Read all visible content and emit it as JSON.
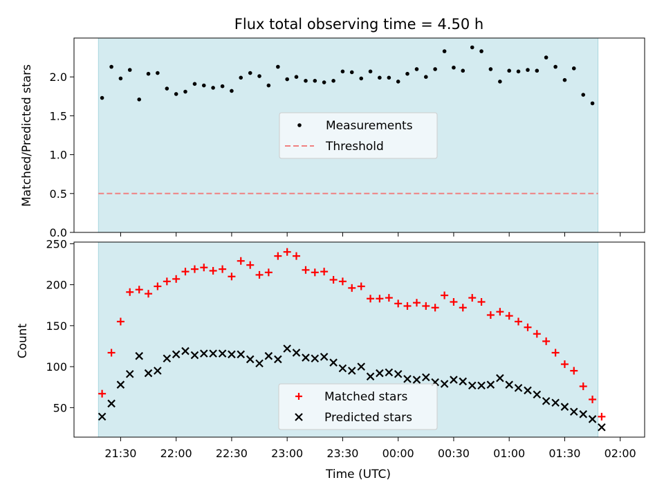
{
  "title": "Flux total observing time = 4.50 h",
  "colors": {
    "band": "#d4ebf0",
    "band_edge": "#a9d6df",
    "measurement": "#000000",
    "threshold": "#f08080",
    "matched": "#ff0000",
    "predicted": "#000000"
  },
  "chart_data": [
    {
      "type": "scatter",
      "ylabel": "Matched/Predicted stars",
      "xlim": [
        -0.42,
        4.72
      ],
      "ylim": [
        0,
        2.5
      ],
      "yticks": [
        {
          "v": 0.0,
          "label": "0.0"
        },
        {
          "v": 0.5,
          "label": "0.5"
        },
        {
          "v": 1.0,
          "label": "1.0"
        },
        {
          "v": 1.5,
          "label": "1.5"
        },
        {
          "v": 2.0,
          "label": "2.0"
        }
      ],
      "observing_window": [
        -0.2,
        4.3
      ],
      "legend": {
        "position": "center",
        "entries": [
          {
            "label": "Measurements",
            "marker": "dot"
          },
          {
            "label": "Threshold",
            "marker": "dashed-line"
          }
        ]
      },
      "threshold": {
        "name": "Threshold",
        "value": 0.5
      },
      "series": [
        {
          "name": "Measurements",
          "x": [
            -0.167,
            -0.083,
            0,
            0.083,
            0.167,
            0.25,
            0.333,
            0.417,
            0.5,
            0.583,
            0.667,
            0.75,
            0.833,
            0.917,
            1.0,
            1.083,
            1.167,
            1.25,
            1.333,
            1.417,
            1.5,
            1.583,
            1.667,
            1.75,
            1.833,
            1.917,
            2.0,
            2.083,
            2.167,
            2.25,
            2.333,
            2.417,
            2.5,
            2.583,
            2.667,
            2.75,
            2.833,
            2.917,
            3.0,
            3.083,
            3.167,
            3.25,
            3.333,
            3.417,
            3.5,
            3.583,
            3.667,
            3.75,
            3.833,
            3.917,
            4.0,
            4.083,
            4.167,
            4.25
          ],
          "y": [
            1.73,
            2.13,
            1.98,
            2.09,
            1.71,
            2.04,
            2.05,
            1.85,
            1.78,
            1.81,
            1.91,
            1.89,
            1.86,
            1.88,
            1.82,
            1.99,
            2.05,
            2.01,
            1.89,
            2.13,
            1.97,
            2.0,
            1.95,
            1.95,
            1.93,
            1.95,
            2.07,
            2.06,
            1.98,
            2.07,
            1.99,
            1.99,
            1.94,
            2.04,
            2.1,
            2.0,
            2.1,
            2.33,
            2.12,
            2.08,
            2.38,
            2.33,
            2.1,
            1.94,
            2.08,
            2.07,
            2.09,
            2.08,
            2.25,
            2.13,
            1.96,
            2.11,
            1.77,
            1.66
          ]
        }
      ]
    },
    {
      "type": "scatter",
      "xlabel": "Time (UTC)",
      "ylabel": "Count",
      "xlim": [
        -0.42,
        4.72
      ],
      "ylim": [
        14,
        252
      ],
      "yticks": [
        {
          "v": 50,
          "label": "50"
        },
        {
          "v": 100,
          "label": "100"
        },
        {
          "v": 150,
          "label": "150"
        },
        {
          "v": 200,
          "label": "200"
        },
        {
          "v": 250,
          "label": "250"
        }
      ],
      "xticks": [
        {
          "v": 0,
          "label": "21:30"
        },
        {
          "v": 0.5,
          "label": "22:00"
        },
        {
          "v": 1.0,
          "label": "22:30"
        },
        {
          "v": 1.5,
          "label": "23:00"
        },
        {
          "v": 2.0,
          "label": "23:30"
        },
        {
          "v": 2.5,
          "label": "00:00"
        },
        {
          "v": 3.0,
          "label": "00:30"
        },
        {
          "v": 3.5,
          "label": "01:00"
        },
        {
          "v": 4.0,
          "label": "01:30"
        },
        {
          "v": 4.5,
          "label": "02:00"
        }
      ],
      "observing_window": [
        -0.2,
        4.3
      ],
      "legend": {
        "position": "lower center",
        "entries": [
          {
            "label": "Matched stars",
            "marker": "plus"
          },
          {
            "label": "Predicted stars",
            "marker": "cross"
          }
        ]
      },
      "series": [
        {
          "name": "Matched stars",
          "x": [
            -0.167,
            -0.083,
            0,
            0.083,
            0.167,
            0.25,
            0.333,
            0.417,
            0.5,
            0.583,
            0.667,
            0.75,
            0.833,
            0.917,
            1.0,
            1.083,
            1.167,
            1.25,
            1.333,
            1.417,
            1.5,
            1.583,
            1.667,
            1.75,
            1.833,
            1.917,
            2.0,
            2.083,
            2.167,
            2.25,
            2.333,
            2.417,
            2.5,
            2.583,
            2.667,
            2.75,
            2.833,
            2.917,
            3.0,
            3.083,
            3.167,
            3.25,
            3.333,
            3.417,
            3.5,
            3.583,
            3.667,
            3.75,
            3.833,
            3.917,
            4.0,
            4.083,
            4.167,
            4.25,
            4.333
          ],
          "y": [
            67,
            117,
            155,
            191,
            194,
            189,
            198,
            204,
            207,
            216,
            219,
            221,
            217,
            219,
            210,
            229,
            224,
            212,
            215,
            235,
            240,
            235,
            218,
            215,
            216,
            206,
            204,
            196,
            198,
            183,
            183,
            184,
            177,
            174,
            178,
            174,
            172,
            187,
            179,
            172,
            184,
            179,
            163,
            167,
            162,
            155,
            148,
            140,
            131,
            117,
            103,
            95,
            76,
            60,
            39
          ]
        },
        {
          "name": "Predicted stars",
          "x": [
            -0.167,
            -0.083,
            0,
            0.083,
            0.167,
            0.25,
            0.333,
            0.417,
            0.5,
            0.583,
            0.667,
            0.75,
            0.833,
            0.917,
            1.0,
            1.083,
            1.167,
            1.25,
            1.333,
            1.417,
            1.5,
            1.583,
            1.667,
            1.75,
            1.833,
            1.917,
            2.0,
            2.083,
            2.167,
            2.25,
            2.333,
            2.417,
            2.5,
            2.583,
            2.667,
            2.75,
            2.833,
            2.917,
            3.0,
            3.083,
            3.167,
            3.25,
            3.333,
            3.417,
            3.5,
            3.583,
            3.667,
            3.75,
            3.833,
            3.917,
            4.0,
            4.083,
            4.167,
            4.25,
            4.333
          ],
          "y": [
            39,
            55,
            78,
            91,
            113,
            92,
            95,
            110,
            115,
            119,
            114,
            116,
            116,
            116,
            115,
            115,
            109,
            104,
            113,
            109,
            122,
            117,
            111,
            110,
            112,
            105,
            98,
            95,
            100,
            88,
            92,
            93,
            91,
            85,
            84,
            87,
            81,
            79,
            84,
            82,
            77,
            77,
            78,
            86,
            78,
            74,
            71,
            66,
            58,
            56,
            51,
            45,
            42,
            36,
            26
          ]
        }
      ]
    }
  ]
}
